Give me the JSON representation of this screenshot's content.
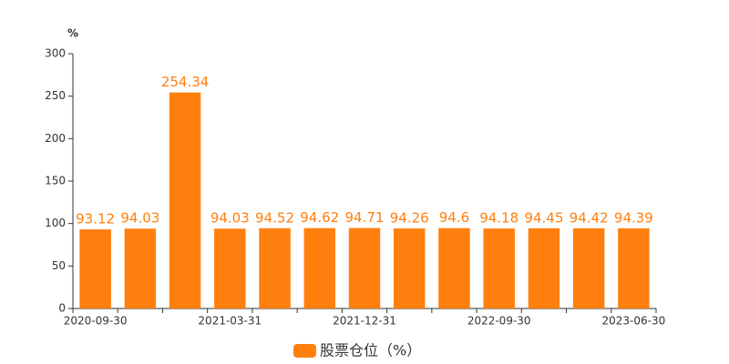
{
  "chart_data": {
    "type": "bar",
    "y_unit": "%",
    "categories": [
      "2020-09-30",
      null,
      null,
      "2021-03-31",
      null,
      null,
      "2021-12-31",
      null,
      null,
      "2022-09-30",
      null,
      null,
      "2023-06-30"
    ],
    "series": [
      {
        "name": "股票仓位（%）",
        "color": "#ff7f0e",
        "values": [
          93.12,
          94.03,
          254.34,
          94.03,
          94.52,
          94.62,
          94.71,
          94.26,
          94.6,
          94.18,
          94.45,
          94.42,
          94.39
        ]
      }
    ],
    "ylim": [
      0,
      300
    ],
    "yticks": [
      0,
      50,
      100,
      150,
      200,
      250,
      300
    ],
    "grid": false,
    "legend": "bottom"
  }
}
